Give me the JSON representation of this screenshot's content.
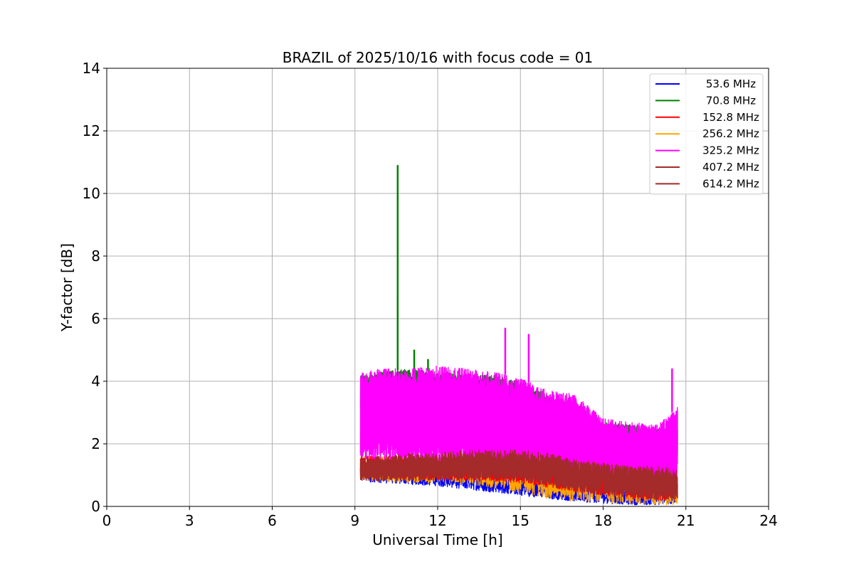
{
  "chart_data": {
    "type": "line",
    "title": "BRAZIL of 2025/10/16 with focus code = 01",
    "xlabel": "Universal Time [h]",
    "ylabel": "Y-factor [dB]",
    "xlim": [
      0,
      24
    ],
    "ylim": [
      0,
      14
    ],
    "xticks": [
      0,
      3,
      6,
      9,
      12,
      15,
      18,
      21,
      24
    ],
    "yticks": [
      0,
      2,
      4,
      6,
      8,
      10,
      12,
      14
    ],
    "grid": true,
    "legend_position": "top-right",
    "data_start": 9.2,
    "data_end": 20.7,
    "series": [
      {
        "name": " 53.6 MHz",
        "color": "#0000ff",
        "envelope": {
          "x": [
            9.2,
            10,
            11,
            12,
            13,
            14,
            15,
            16,
            17,
            18,
            19,
            20,
            20.7
          ],
          "low": [
            0.8,
            0.75,
            0.7,
            0.65,
            0.55,
            0.45,
            0.35,
            0.25,
            0.15,
            0.1,
            0.05,
            0.05,
            0.1
          ],
          "high": [
            1.4,
            1.4,
            1.3,
            1.3,
            1.2,
            1.1,
            1.0,
            0.9,
            0.8,
            0.7,
            0.6,
            0.6,
            0.6
          ]
        }
      },
      {
        "name": " 70.8 MHz",
        "color": "#008000",
        "envelope": {
          "x": [
            9.2,
            10,
            11,
            12,
            13,
            14,
            15,
            16,
            17,
            18,
            19,
            20,
            20.7
          ],
          "low": [
            3.0,
            3.0,
            3.0,
            2.9,
            2.7,
            2.6,
            2.4,
            2.0,
            1.7,
            1.5,
            1.4,
            1.4,
            1.4
          ],
          "high": [
            4.2,
            4.3,
            4.4,
            4.3,
            4.2,
            4.2,
            4.0,
            3.6,
            3.3,
            2.7,
            2.6,
            2.5,
            2.5
          ]
        },
        "spikes": [
          {
            "x": 10.55,
            "y": 10.9
          },
          {
            "x": 11.15,
            "y": 5.0
          },
          {
            "x": 11.65,
            "y": 4.7
          }
        ]
      },
      {
        "name": " 152.8 MHz",
        "color": "#ff0000",
        "envelope": {
          "x": [
            9.2,
            10,
            11,
            12,
            13,
            14,
            15,
            16,
            17,
            18,
            19,
            20,
            20.7
          ],
          "low": [
            0.9,
            0.9,
            0.85,
            0.85,
            0.8,
            0.8,
            0.75,
            0.6,
            0.45,
            0.35,
            0.25,
            0.2,
            0.2
          ],
          "high": [
            1.6,
            1.6,
            1.6,
            1.6,
            1.6,
            1.6,
            1.6,
            1.5,
            1.4,
            1.3,
            1.2,
            1.1,
            1.0
          ]
        }
      },
      {
        "name": " 256.2 MHz",
        "color": "#ffa500",
        "envelope": {
          "x": [
            9.2,
            10,
            11,
            12,
            13,
            14,
            15,
            16,
            17,
            18,
            19,
            20,
            20.7
          ],
          "low": [
            0.85,
            0.8,
            0.75,
            0.75,
            0.7,
            0.6,
            0.45,
            0.25,
            0.15,
            0.1,
            0.05,
            0.05,
            0.05
          ],
          "high": [
            1.6,
            1.6,
            1.55,
            1.55,
            1.5,
            1.5,
            1.6,
            1.5,
            1.4,
            1.9,
            1.2,
            1.1,
            1.0
          ]
        }
      },
      {
        "name": " 325.2 MHz",
        "color": "#ff00ff",
        "envelope": {
          "x": [
            9.2,
            10,
            11,
            12,
            13,
            14,
            15,
            16,
            17,
            18,
            19,
            20,
            20.7
          ],
          "low": [
            1.5,
            1.5,
            1.4,
            1.3,
            1.3,
            1.2,
            1.1,
            1.0,
            0.9,
            0.9,
            0.8,
            0.8,
            0.8
          ],
          "high": [
            4.3,
            4.4,
            4.4,
            4.5,
            4.4,
            4.3,
            4.1,
            3.7,
            3.6,
            2.8,
            2.7,
            2.6,
            3.2
          ]
        },
        "spikes": [
          {
            "x": 14.45,
            "y": 5.7
          },
          {
            "x": 15.3,
            "y": 5.5
          },
          {
            "x": 20.5,
            "y": 4.4
          }
        ]
      },
      {
        "name": " 407.2 MHz",
        "color": "#a52a2a",
        "envelope": {
          "x": [
            9.2,
            10,
            11,
            12,
            13,
            14,
            15,
            16,
            17,
            18,
            19,
            20,
            20.7
          ],
          "low": [
            0.9,
            0.9,
            0.9,
            0.9,
            0.9,
            0.9,
            0.85,
            0.7,
            0.5,
            0.4,
            0.3,
            0.25,
            0.2
          ],
          "high": [
            1.6,
            1.6,
            1.7,
            1.7,
            1.8,
            1.8,
            1.8,
            1.7,
            1.5,
            1.4,
            1.3,
            1.3,
            1.2
          ]
        }
      },
      {
        "name": " 614.2 MHz",
        "color": "#a52a2a",
        "envelope": {
          "x": [
            9.2,
            10,
            11,
            12,
            13,
            14,
            15,
            16,
            17,
            18,
            19,
            20,
            20.7
          ],
          "low": [
            0.8,
            0.8,
            0.8,
            0.85,
            0.85,
            0.85,
            0.8,
            0.65,
            0.5,
            0.35,
            0.25,
            0.2,
            0.15
          ],
          "high": [
            1.5,
            1.5,
            1.55,
            1.6,
            1.7,
            1.7,
            1.7,
            1.6,
            1.45,
            1.35,
            1.25,
            1.2,
            1.15
          ]
        }
      }
    ]
  }
}
